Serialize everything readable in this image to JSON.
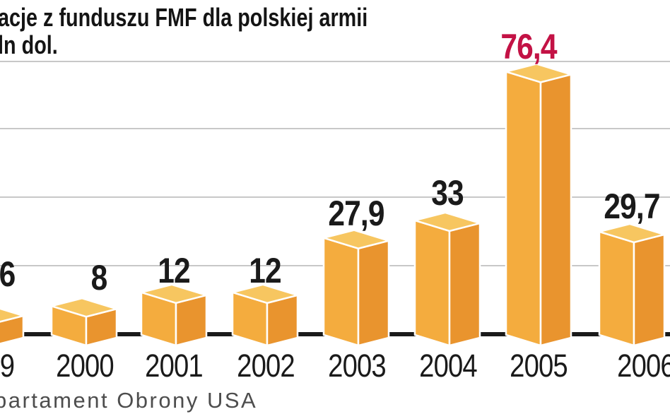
{
  "header": {
    "title_line1": "acje z funduszu FMF dla polskiej armii",
    "title_line2": "ln dol."
  },
  "footer": {
    "source_line": "partament Obrony USA"
  },
  "chart_data": {
    "type": "bar",
    "title": "acje z funduszu FMF dla polskiej armii",
    "units_subtitle": "ln dol.",
    "source": "partament Obrony USA",
    "categories": [
      "9",
      "2000",
      "2001",
      "2002",
      "2003",
      "2004",
      "2005",
      "2006"
    ],
    "values": [
      6,
      8,
      12,
      12,
      27.9,
      33,
      76.4,
      29.7
    ],
    "value_labels": [
      "6",
      "8",
      "12",
      "12",
      "27,9",
      "33",
      "76,4",
      "29,7"
    ],
    "highlight_index": 6,
    "ylim": [
      0,
      80
    ],
    "gridline_values": [
      0,
      20,
      40,
      60,
      80
    ],
    "grid_on": true,
    "legend": "none",
    "style": "3d-boxes",
    "colors": {
      "bar_front": "#f4ac3e",
      "bar_side": "#e9942e",
      "bar_top": "#f7c660",
      "bar_edge": "#ffffff",
      "grid": "#c8c8c8",
      "axis": "#1a1a1a",
      "value_text": "#1a1a1a",
      "highlight_text": "#c31245",
      "year_text": "#1a1a1a",
      "title_text": "#141414",
      "source_text": "#4d4d4d"
    }
  }
}
